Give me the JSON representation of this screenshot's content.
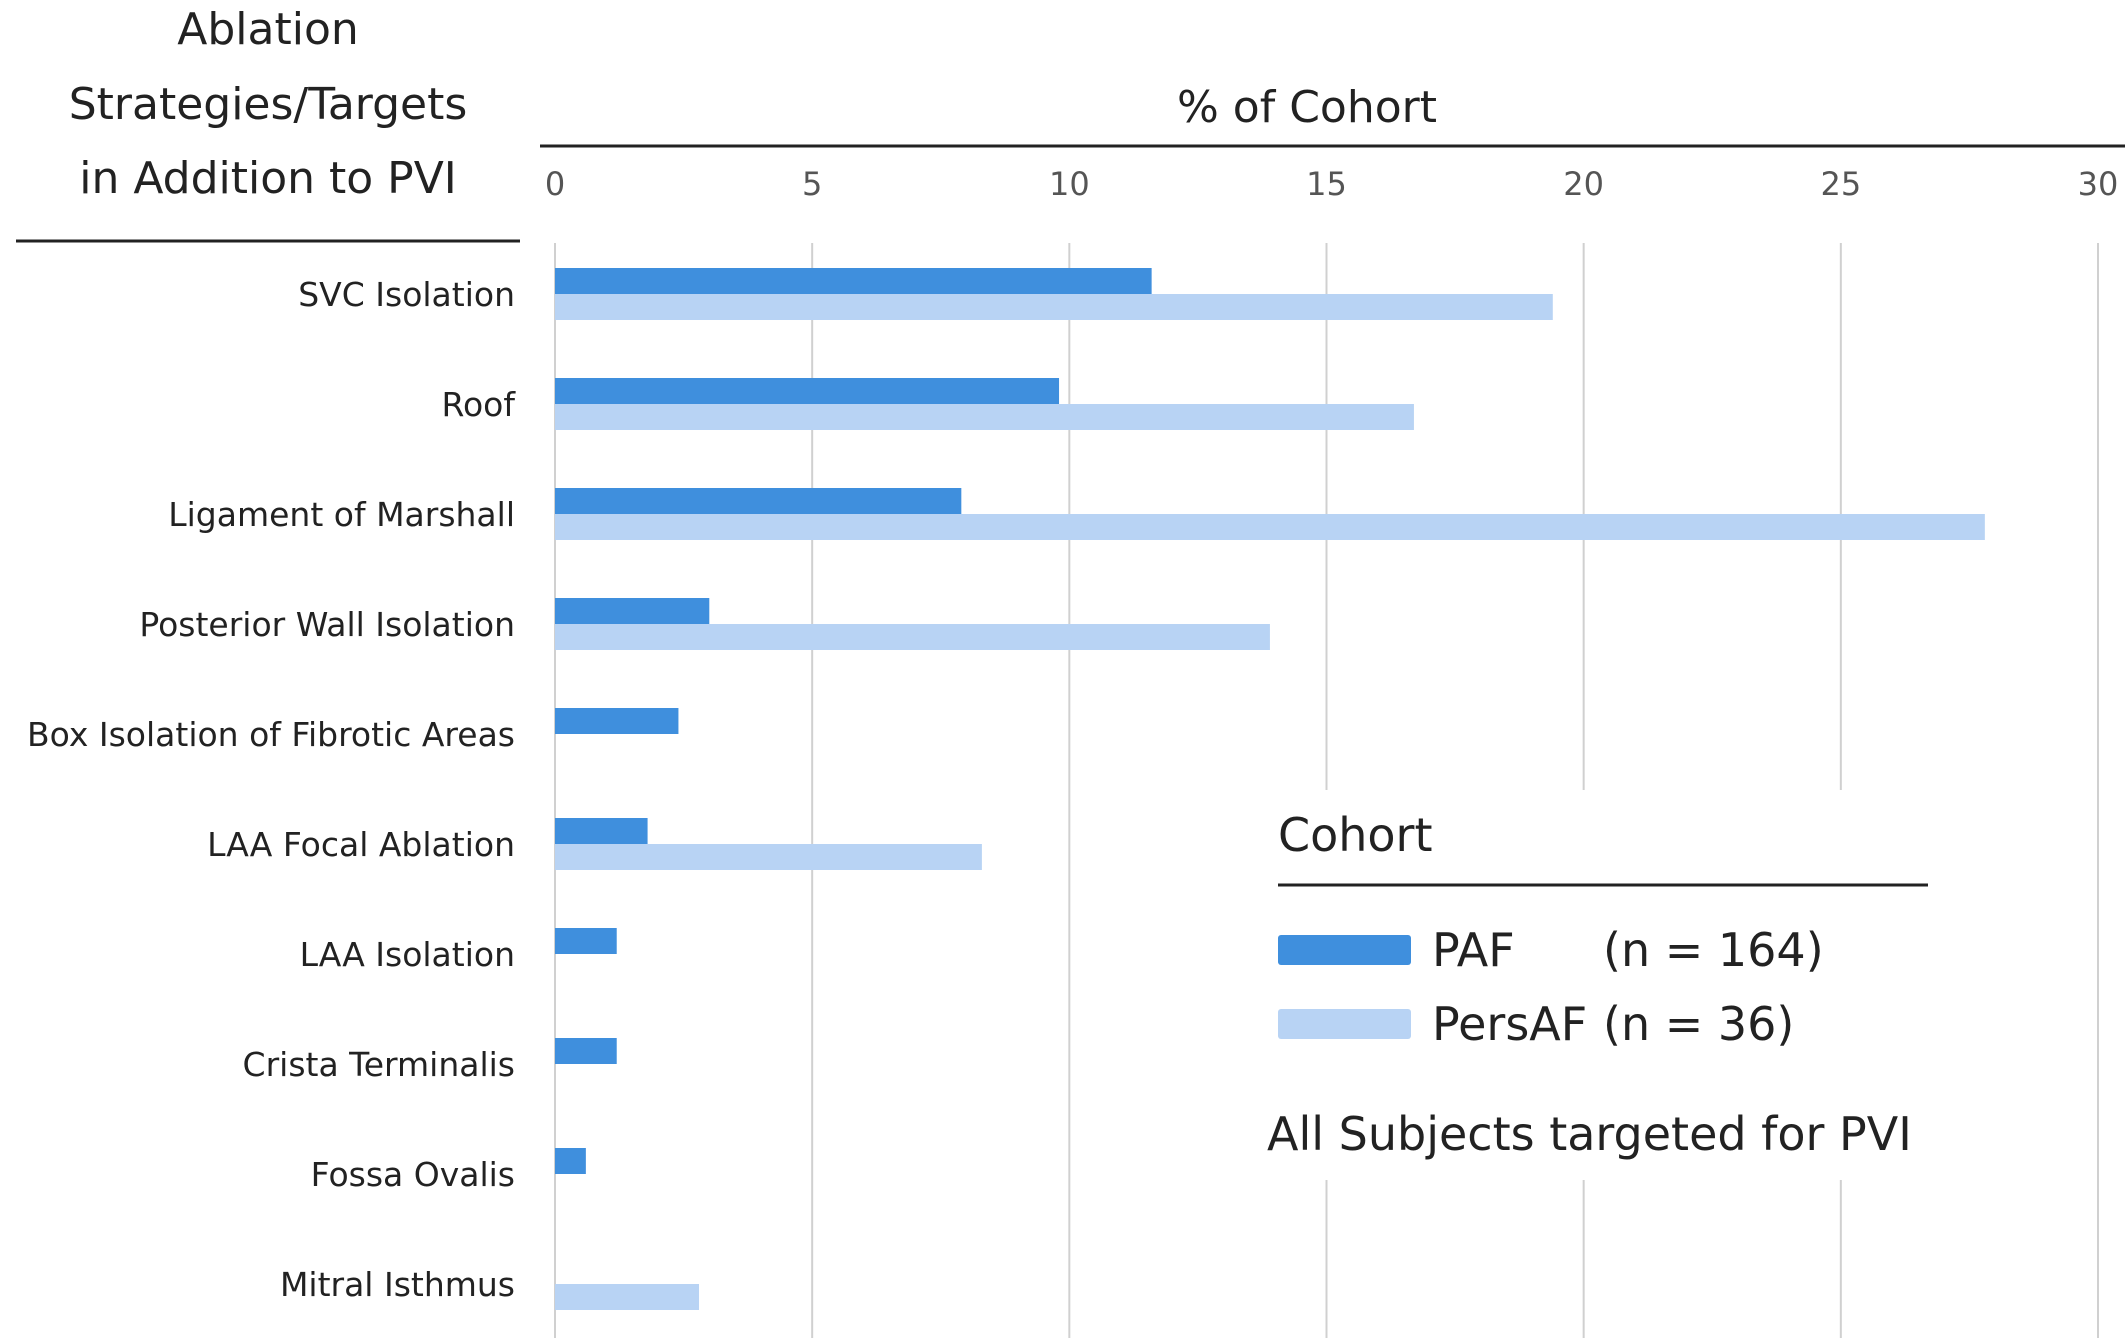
{
  "chart_data": {
    "type": "bar",
    "orientation": "horizontal",
    "row_header_lines": [
      "Ablation",
      "Strategies/Targets",
      "in Addition to PVI"
    ],
    "xlabel": "% of Cohort",
    "xlim": [
      0,
      30
    ],
    "xticks": [
      "0",
      "5",
      "10",
      "15",
      "20",
      "25",
      "30"
    ],
    "x_axis_position": "top",
    "grid": true,
    "categories": [
      "SVC Isolation",
      "Roof",
      "Ligament of Marshall",
      "Posterior Wall Isolation",
      "Box Isolation of Fibrotic Areas",
      "LAA Focal Ablation",
      "LAA Isolation",
      "Crista Terminalis",
      "Fossa Ovalis",
      "Mitral Isthmus"
    ],
    "series": [
      {
        "name": "PAF",
        "color": "#3f8fdd",
        "values": [
          11.6,
          9.8,
          7.9,
          3.0,
          2.4,
          1.8,
          1.2,
          1.2,
          0.6,
          0
        ]
      },
      {
        "name": "PersAF",
        "color": "#b8d3f4",
        "values": [
          19.4,
          16.7,
          27.8,
          13.9,
          0,
          8.3,
          0,
          0,
          0,
          2.8
        ]
      }
    ],
    "legend": {
      "title": "Cohort",
      "placement": "lower-right",
      "entries": [
        {
          "label": "PAF",
          "count": "(n = 164)"
        },
        {
          "label": "PersAF",
          "count": "(n = 36)"
        }
      ]
    },
    "annotation": "All Subjects targeted for PVI"
  }
}
